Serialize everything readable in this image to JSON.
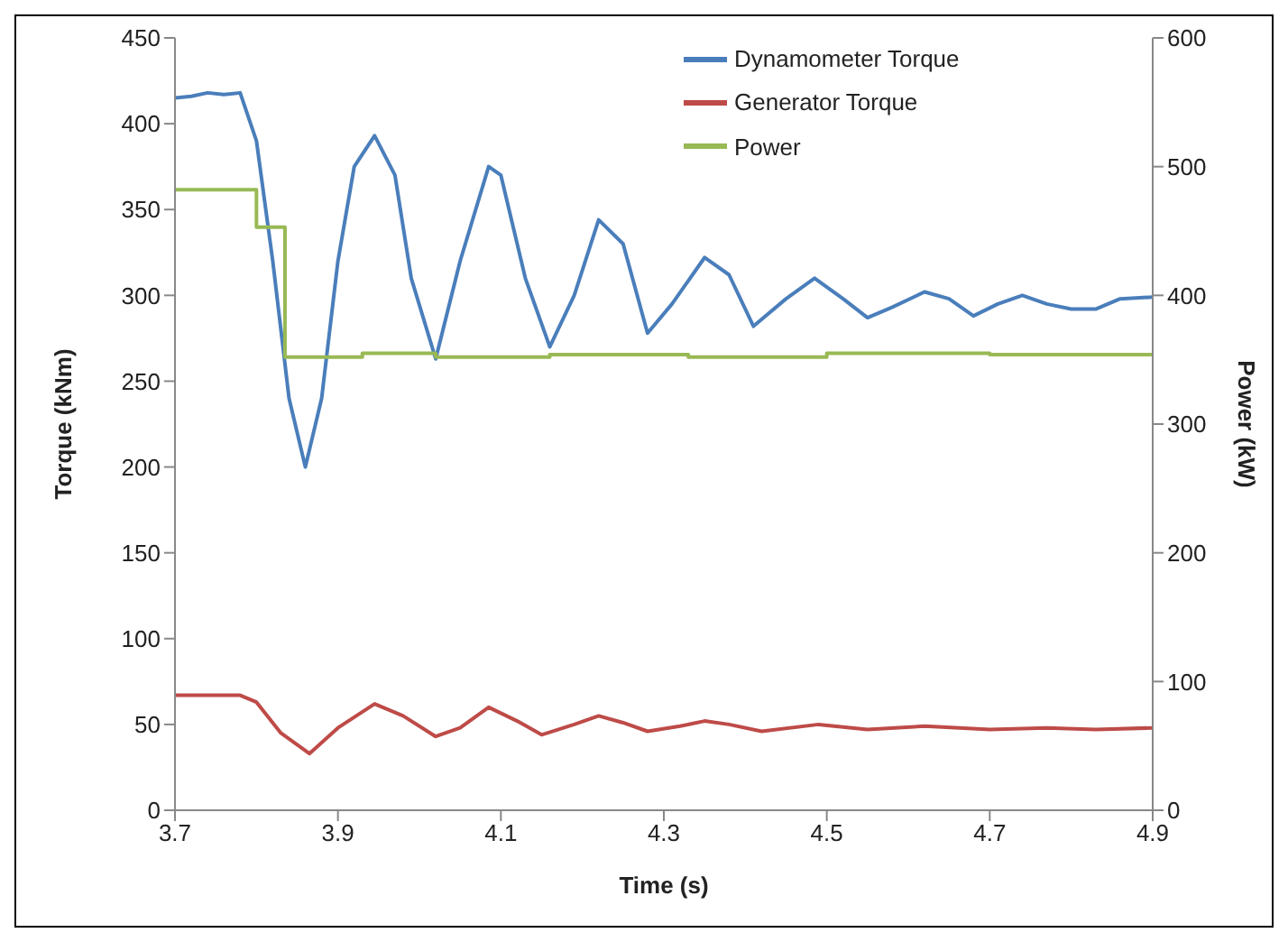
{
  "chart_data": {
    "type": "line",
    "xlabel": "Time (s)",
    "ylabel": "Torque (kNm)",
    "y2label": "Power (kW)",
    "xlim": [
      3.7,
      4.9
    ],
    "xticks": [
      3.7,
      3.9,
      4.1,
      4.3,
      4.5,
      4.7,
      4.9
    ],
    "ylim": [
      0,
      450
    ],
    "yticks": [
      0,
      50,
      100,
      150,
      200,
      250,
      300,
      350,
      400,
      450
    ],
    "y2lim": [
      0,
      600
    ],
    "y2ticks": [
      0,
      100,
      200,
      300,
      400,
      500,
      600
    ],
    "grid": false,
    "legend": "top right",
    "marker": "none",
    "line_style": "solid",
    "series": [
      {
        "name": "Dynamometer Torque",
        "color": "#4a7ebb",
        "x": [
          3.7,
          3.72,
          3.74,
          3.76,
          3.78,
          3.8,
          3.82,
          3.84,
          3.86,
          3.88,
          3.9,
          3.92,
          3.945,
          3.97,
          3.99,
          4.02,
          4.05,
          4.085,
          4.1,
          4.13,
          4.16,
          4.19,
          4.22,
          4.25,
          4.28,
          4.31,
          4.35,
          4.38,
          4.41,
          4.45,
          4.485,
          4.52,
          4.55,
          4.58,
          4.62,
          4.65,
          4.68,
          4.71,
          4.74,
          4.77,
          4.8,
          4.83,
          4.86,
          4.9
        ],
        "values": [
          415,
          416,
          418,
          417,
          418,
          390,
          320,
          240,
          200,
          240,
          320,
          375,
          393,
          370,
          310,
          263,
          320,
          375,
          370,
          310,
          270,
          300,
          344,
          330,
          278,
          295,
          322,
          312,
          282,
          298,
          310,
          298,
          287,
          293,
          302,
          298,
          288,
          295,
          300,
          295,
          292,
          292,
          298,
          299
        ]
      },
      {
        "name": "Generator Torque",
        "color": "#be4b48",
        "x": [
          3.7,
          3.74,
          3.78,
          3.8,
          3.83,
          3.865,
          3.9,
          3.945,
          3.98,
          4.02,
          4.05,
          4.085,
          4.12,
          4.15,
          4.19,
          4.22,
          4.25,
          4.28,
          4.32,
          4.35,
          4.38,
          4.42,
          4.49,
          4.55,
          4.62,
          4.7,
          4.77,
          4.83,
          4.9
        ],
        "values": [
          67,
          67,
          67,
          63,
          45,
          33,
          48,
          62,
          55,
          43,
          48,
          60,
          52,
          44,
          50,
          55,
          51,
          46,
          49,
          52,
          50,
          46,
          50,
          47,
          49,
          47,
          48,
          47,
          48
        ]
      },
      {
        "name": "Power",
        "color": "#98b954",
        "type": "step",
        "axis": "y2",
        "x": [
          3.7,
          3.8,
          3.835,
          3.93,
          4.02,
          4.16,
          4.33,
          4.5,
          4.7,
          4.9
        ],
        "values": [
          482,
          453,
          352,
          355,
          352,
          354,
          352,
          355,
          354,
          354
        ]
      }
    ]
  }
}
